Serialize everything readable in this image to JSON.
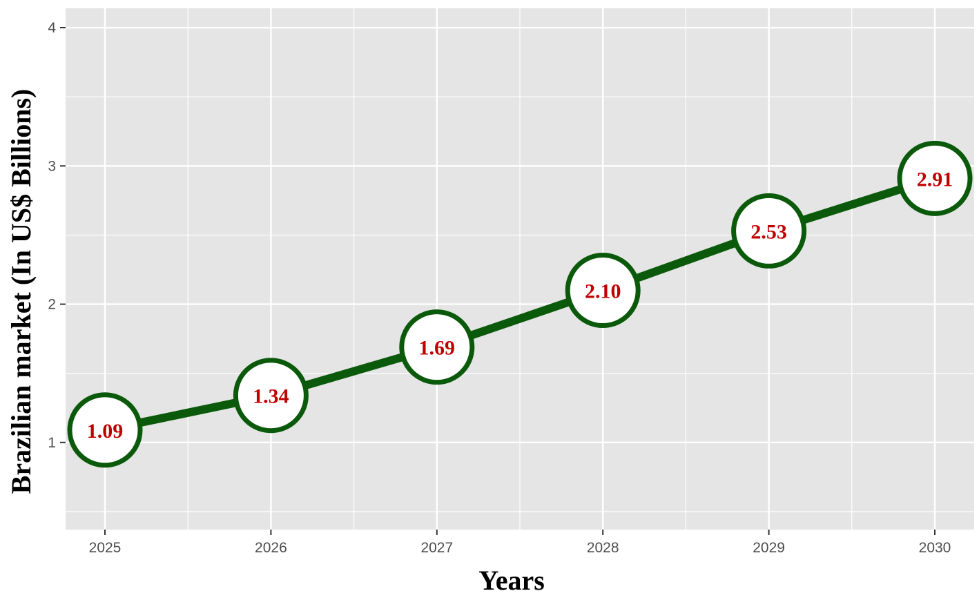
{
  "chart_data": {
    "type": "line",
    "x": [
      "2025",
      "2026",
      "2027",
      "2028",
      "2029",
      "2030"
    ],
    "series": [
      {
        "values": [
          1.09,
          1.34,
          1.69,
          2.1,
          2.53,
          2.91
        ]
      }
    ],
    "data_labels": [
      "1.09",
      "1.34",
      "1.69",
      "2.10",
      "2.53",
      "2.91"
    ],
    "xlabel": "Years",
    "ylabel": "Brazilian market (In US$ Billions)",
    "y_ticks": [
      "1",
      "2",
      "3",
      "4"
    ],
    "y_tick_values": [
      1,
      2,
      3,
      4
    ],
    "ylim": [
      0.37,
      4.14
    ],
    "grid": true,
    "legend": "none",
    "colors": {
      "panel": "#e5e5e5",
      "grid": "#ffffff",
      "line": "#0b5a0b",
      "marker_fill": "#ffffff",
      "label": "#c00000"
    }
  }
}
